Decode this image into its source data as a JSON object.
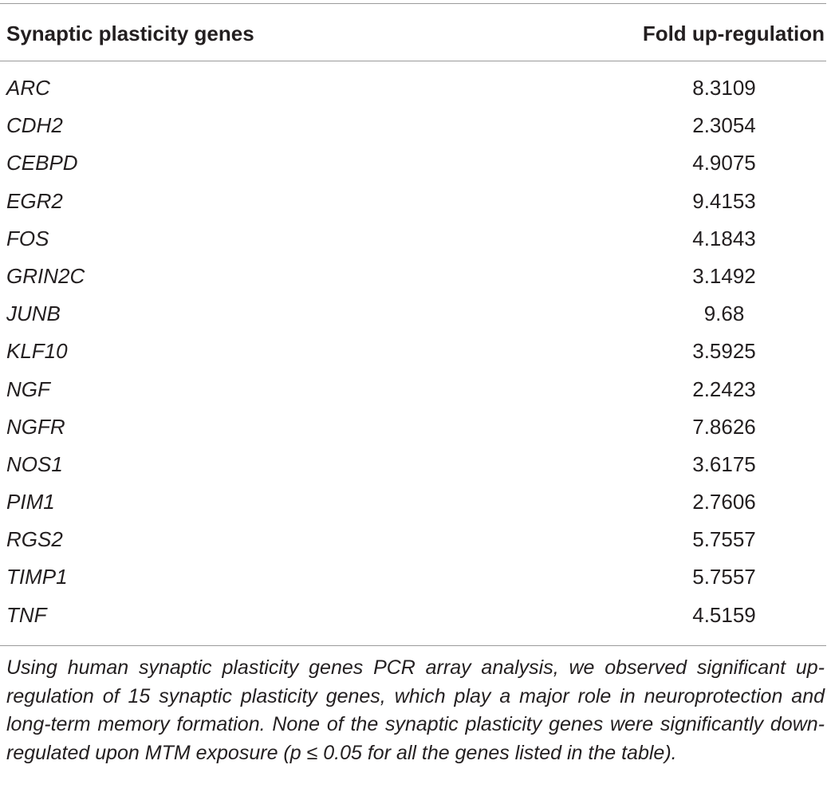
{
  "table": {
    "header": {
      "gene_label": "Synaptic plasticity genes",
      "fold_label": "Fold up-regulation"
    },
    "rows": [
      {
        "gene": "ARC",
        "fold": "8.3109"
      },
      {
        "gene": "CDH2",
        "fold": "2.3054"
      },
      {
        "gene": "CEBPD",
        "fold": "4.9075"
      },
      {
        "gene": "EGR2",
        "fold": "9.4153"
      },
      {
        "gene": "FOS",
        "fold": "4.1843"
      },
      {
        "gene": "GRIN2C",
        "fold": "3.1492"
      },
      {
        "gene": "JUNB",
        "fold": "9.68"
      },
      {
        "gene": "KLF10",
        "fold": "3.5925"
      },
      {
        "gene": "NGF",
        "fold": "2.2423"
      },
      {
        "gene": "NGFR",
        "fold": "7.8626"
      },
      {
        "gene": "NOS1",
        "fold": "3.6175"
      },
      {
        "gene": "PIM1",
        "fold": "2.7606"
      },
      {
        "gene": "RGS2",
        "fold": "5.7557"
      },
      {
        "gene": "TIMP1",
        "fold": "5.7557"
      },
      {
        "gene": "TNF",
        "fold": "4.5159"
      }
    ],
    "footnote": "Using human synaptic plasticity genes PCR array analysis, we observed significant up-regulation of 15 synaptic plasticity genes, which play a major role in neuroprotection and long-term memory formation. None of the synaptic plasticity genes were significantly down-regulated upon MTM exposure (p ≤ 0.05 for all the genes listed in the table)."
  }
}
